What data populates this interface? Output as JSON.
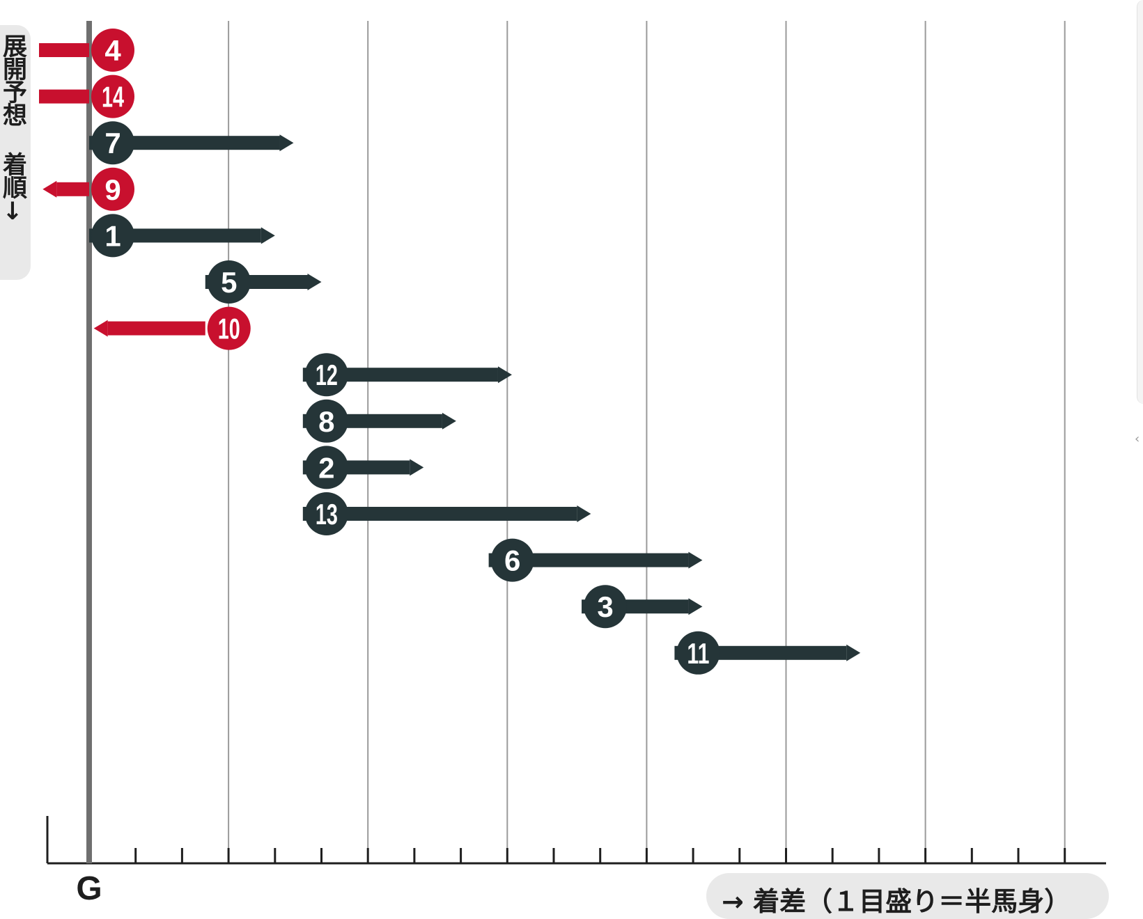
{
  "header": {
    "title": ""
  },
  "y_label": "展開予想 着順↓",
  "x_label": "→ 着差（１目盛り＝半馬身）",
  "goal_label": "G",
  "colors": {
    "ahead": "#c8102e",
    "behind": "#253538",
    "goal_line": "#6f6f6f",
    "grid": "#9a9a9a"
  },
  "icons": {
    "side_chevron": "chevron-left-icon"
  },
  "chart_data": {
    "type": "bar",
    "title": "",
    "xlabel": "→ 着差（１目盛り＝半馬身）",
    "ylabel": "展開予想 着順↓",
    "x_unit": "tick = half a length; grid line every 3 ticks",
    "xlim": [
      -1,
      21
    ],
    "grid": true,
    "rows": [
      {
        "horse": "4",
        "position": 0,
        "arrow_end": -1.5,
        "color": "red"
      },
      {
        "horse": "14",
        "position": 0,
        "arrow_end": -1.5,
        "color": "red"
      },
      {
        "horse": "7",
        "position": 0,
        "arrow_end": 4.4,
        "color": "dark"
      },
      {
        "horse": "9",
        "position": 0,
        "arrow_end": -1.0,
        "color": "red"
      },
      {
        "horse": "1",
        "position": 0,
        "arrow_end": 4.0,
        "color": "dark"
      },
      {
        "horse": "5",
        "position": 2.5,
        "arrow_end": 5.0,
        "color": "dark"
      },
      {
        "horse": "10",
        "position": 2.5,
        "arrow_end": 0.1,
        "color": "red"
      },
      {
        "horse": "12",
        "position": 4.6,
        "arrow_end": 9.1,
        "color": "dark"
      },
      {
        "horse": "8",
        "position": 4.6,
        "arrow_end": 7.9,
        "color": "dark"
      },
      {
        "horse": "2",
        "position": 4.6,
        "arrow_end": 7.2,
        "color": "dark"
      },
      {
        "horse": "13",
        "position": 4.6,
        "arrow_end": 10.8,
        "color": "dark"
      },
      {
        "horse": "6",
        "position": 8.6,
        "arrow_end": 13.2,
        "color": "dark"
      },
      {
        "horse": "3",
        "position": 10.6,
        "arrow_end": 13.2,
        "color": "dark"
      },
      {
        "horse": "11",
        "position": 12.6,
        "arrow_end": 16.6,
        "color": "dark"
      }
    ]
  }
}
